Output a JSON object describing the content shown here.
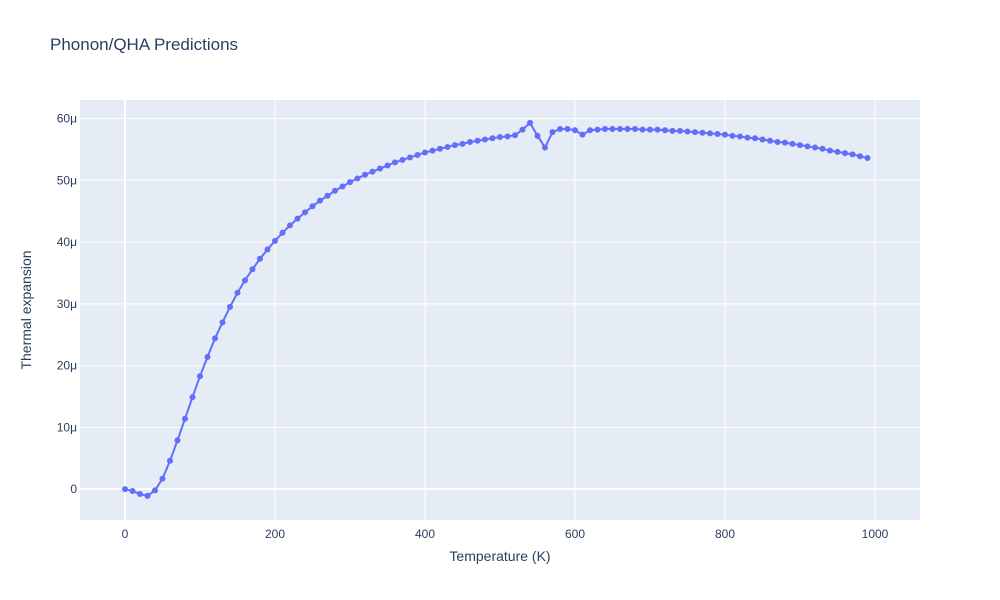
{
  "chart_data": {
    "type": "line",
    "title": "Phonon/QHA Predictions",
    "xlabel": "Temperature (K)",
    "ylabel": "Thermal expansion",
    "xlim": [
      -60,
      1060
    ],
    "ylim": [
      -5,
      63
    ],
    "x_ticks": [
      {
        "value": 0,
        "label": "0"
      },
      {
        "value": 200,
        "label": "200"
      },
      {
        "value": 400,
        "label": "400"
      },
      {
        "value": 600,
        "label": "600"
      },
      {
        "value": 800,
        "label": "800"
      },
      {
        "value": 1000,
        "label": "1000"
      }
    ],
    "y_ticks": [
      {
        "value": 0,
        "label": "0"
      },
      {
        "value": 10,
        "label": "10μ"
      },
      {
        "value": 20,
        "label": "20μ"
      },
      {
        "value": 30,
        "label": "30μ"
      },
      {
        "value": 40,
        "label": "40μ"
      },
      {
        "value": 50,
        "label": "50μ"
      },
      {
        "value": 60,
        "label": "60μ"
      }
    ],
    "grid": true,
    "series": [
      {
        "color": "#636efa",
        "x": [
          0,
          10,
          20,
          30,
          40,
          50,
          60,
          70,
          80,
          90,
          100,
          110,
          120,
          130,
          140,
          150,
          160,
          170,
          180,
          190,
          200,
          210,
          220,
          230,
          240,
          250,
          260,
          270,
          280,
          290,
          300,
          310,
          320,
          330,
          340,
          350,
          360,
          370,
          380,
          390,
          400,
          410,
          420,
          430,
          440,
          450,
          460,
          470,
          480,
          490,
          500,
          510,
          520,
          530,
          540,
          550,
          560,
          570,
          580,
          590,
          600,
          610,
          620,
          630,
          640,
          650,
          660,
          670,
          680,
          690,
          700,
          710,
          720,
          730,
          740,
          750,
          760,
          770,
          780,
          790,
          800,
          810,
          820,
          830,
          840,
          850,
          860,
          870,
          880,
          890,
          900,
          910,
          920,
          930,
          940,
          950,
          960,
          970,
          980,
          990
        ],
        "y": [
          0.0,
          -0.3,
          -0.8,
          -1.1,
          -0.2,
          1.7,
          4.6,
          7.9,
          11.4,
          14.9,
          18.3,
          21.4,
          24.4,
          27.0,
          29.5,
          31.8,
          33.8,
          35.6,
          37.3,
          38.8,
          40.2,
          41.5,
          42.7,
          43.8,
          44.8,
          45.8,
          46.7,
          47.5,
          48.3,
          49.0,
          49.7,
          50.3,
          50.9,
          51.4,
          51.9,
          52.4,
          52.9,
          53.3,
          53.7,
          54.1,
          54.5,
          54.8,
          55.1,
          55.4,
          55.7,
          55.9,
          56.2,
          56.4,
          56.6,
          56.8,
          57.0,
          57.1,
          57.3,
          58.2,
          59.3,
          57.2,
          55.3,
          57.8,
          58.3,
          58.3,
          58.1,
          57.4,
          58.1,
          58.2,
          58.3,
          58.3,
          58.3,
          58.3,
          58.3,
          58.2,
          58.2,
          58.2,
          58.1,
          58.0,
          58.0,
          57.9,
          57.8,
          57.7,
          57.6,
          57.5,
          57.4,
          57.2,
          57.1,
          56.9,
          56.8,
          56.6,
          56.4,
          56.2,
          56.1,
          55.9,
          55.7,
          55.5,
          55.3,
          55.1,
          54.8,
          54.6,
          54.4,
          54.2,
          53.9,
          53.6
        ]
      }
    ]
  }
}
